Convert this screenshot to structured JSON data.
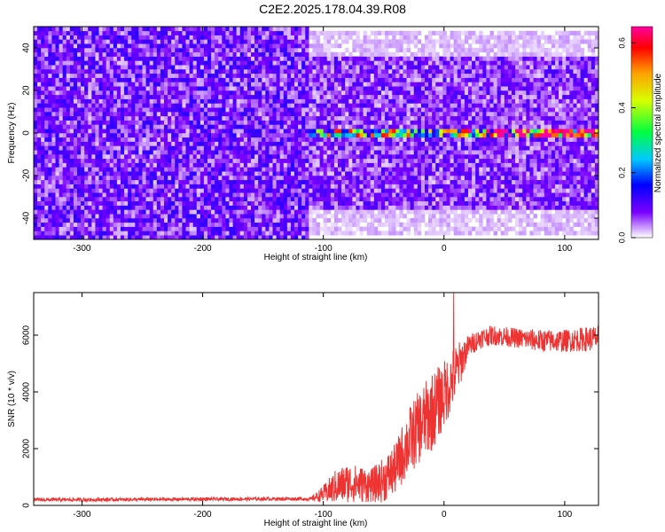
{
  "title": "C2E2.2025.178.04.39.R08",
  "chart_data": [
    {
      "type": "heatmap",
      "xlabel": "Height of straight line (km)",
      "ylabel": "Frequency (Hz)",
      "xlim": [
        -340,
        128
      ],
      "ylim": [
        -50,
        50
      ],
      "xticks": [
        -300,
        -200,
        -100,
        0,
        100
      ],
      "yticks": [
        -40,
        -20,
        0,
        20,
        40
      ],
      "colorbar": {
        "label": "Normalized spectral amplitude",
        "range": [
          0.0,
          0.65
        ],
        "ticks": [
          0.0,
          0.2,
          0.4,
          0.6
        ],
        "colormap": "rainbow (purple-blue-cyan-green-yellow-red-magenta)"
      },
      "regions": [
        {
          "x_range": [
            -340,
            -112
          ],
          "freq_range": [
            -50,
            50
          ],
          "amplitude": 0.08,
          "description": "broadband noise"
        },
        {
          "x_range": [
            -112,
            128
          ],
          "freq_range": [
            -35,
            35
          ],
          "amplitude": 0.07,
          "description": "band-limited noise"
        },
        {
          "x_range": [
            -112,
            128
          ],
          "freq_range": [
            -2,
            2
          ],
          "amplitude": 0.35,
          "description": "narrow tone near 0 Hz"
        },
        {
          "x_range": [
            20,
            128
          ],
          "freq_range": [
            -1,
            1
          ],
          "amplitude": 0.6,
          "description": "strongest tone"
        }
      ],
      "grid": false
    },
    {
      "type": "line",
      "xlabel": "Height of straight line (km)",
      "ylabel": "SNR (10 * v/v)",
      "xlim": [
        -340,
        128
      ],
      "ylim": [
        0,
        7500
      ],
      "xticks": [
        -300,
        -200,
        -100,
        0,
        100
      ],
      "yticks": [
        0,
        2000,
        4000,
        6000
      ],
      "color": "#ee3333",
      "series": [
        {
          "x": [
            -340,
            -300,
            -250,
            -200,
            -150,
            -110,
            -100,
            -90,
            -80,
            -70,
            -60,
            -50,
            -40,
            -30,
            -20,
            -10,
            0,
            10,
            20,
            30,
            40,
            60,
            80,
            100,
            128
          ],
          "mean": [
            200,
            200,
            210,
            220,
            230,
            230,
            400,
            650,
            800,
            750,
            700,
            900,
            1300,
            2200,
            2800,
            3300,
            3900,
            4700,
            5600,
            5900,
            6000,
            5900,
            5800,
            5800,
            5900
          ],
          "spread": [
            60,
            60,
            60,
            60,
            60,
            60,
            300,
            600,
            700,
            650,
            600,
            800,
            900,
            1200,
            1300,
            1400,
            1200,
            1000,
            400,
            350,
            350,
            350,
            400,
            400,
            450
          ]
        }
      ],
      "annotations": {
        "peak_y": 7500,
        "peak_x": 8
      },
      "grid": false
    }
  ]
}
